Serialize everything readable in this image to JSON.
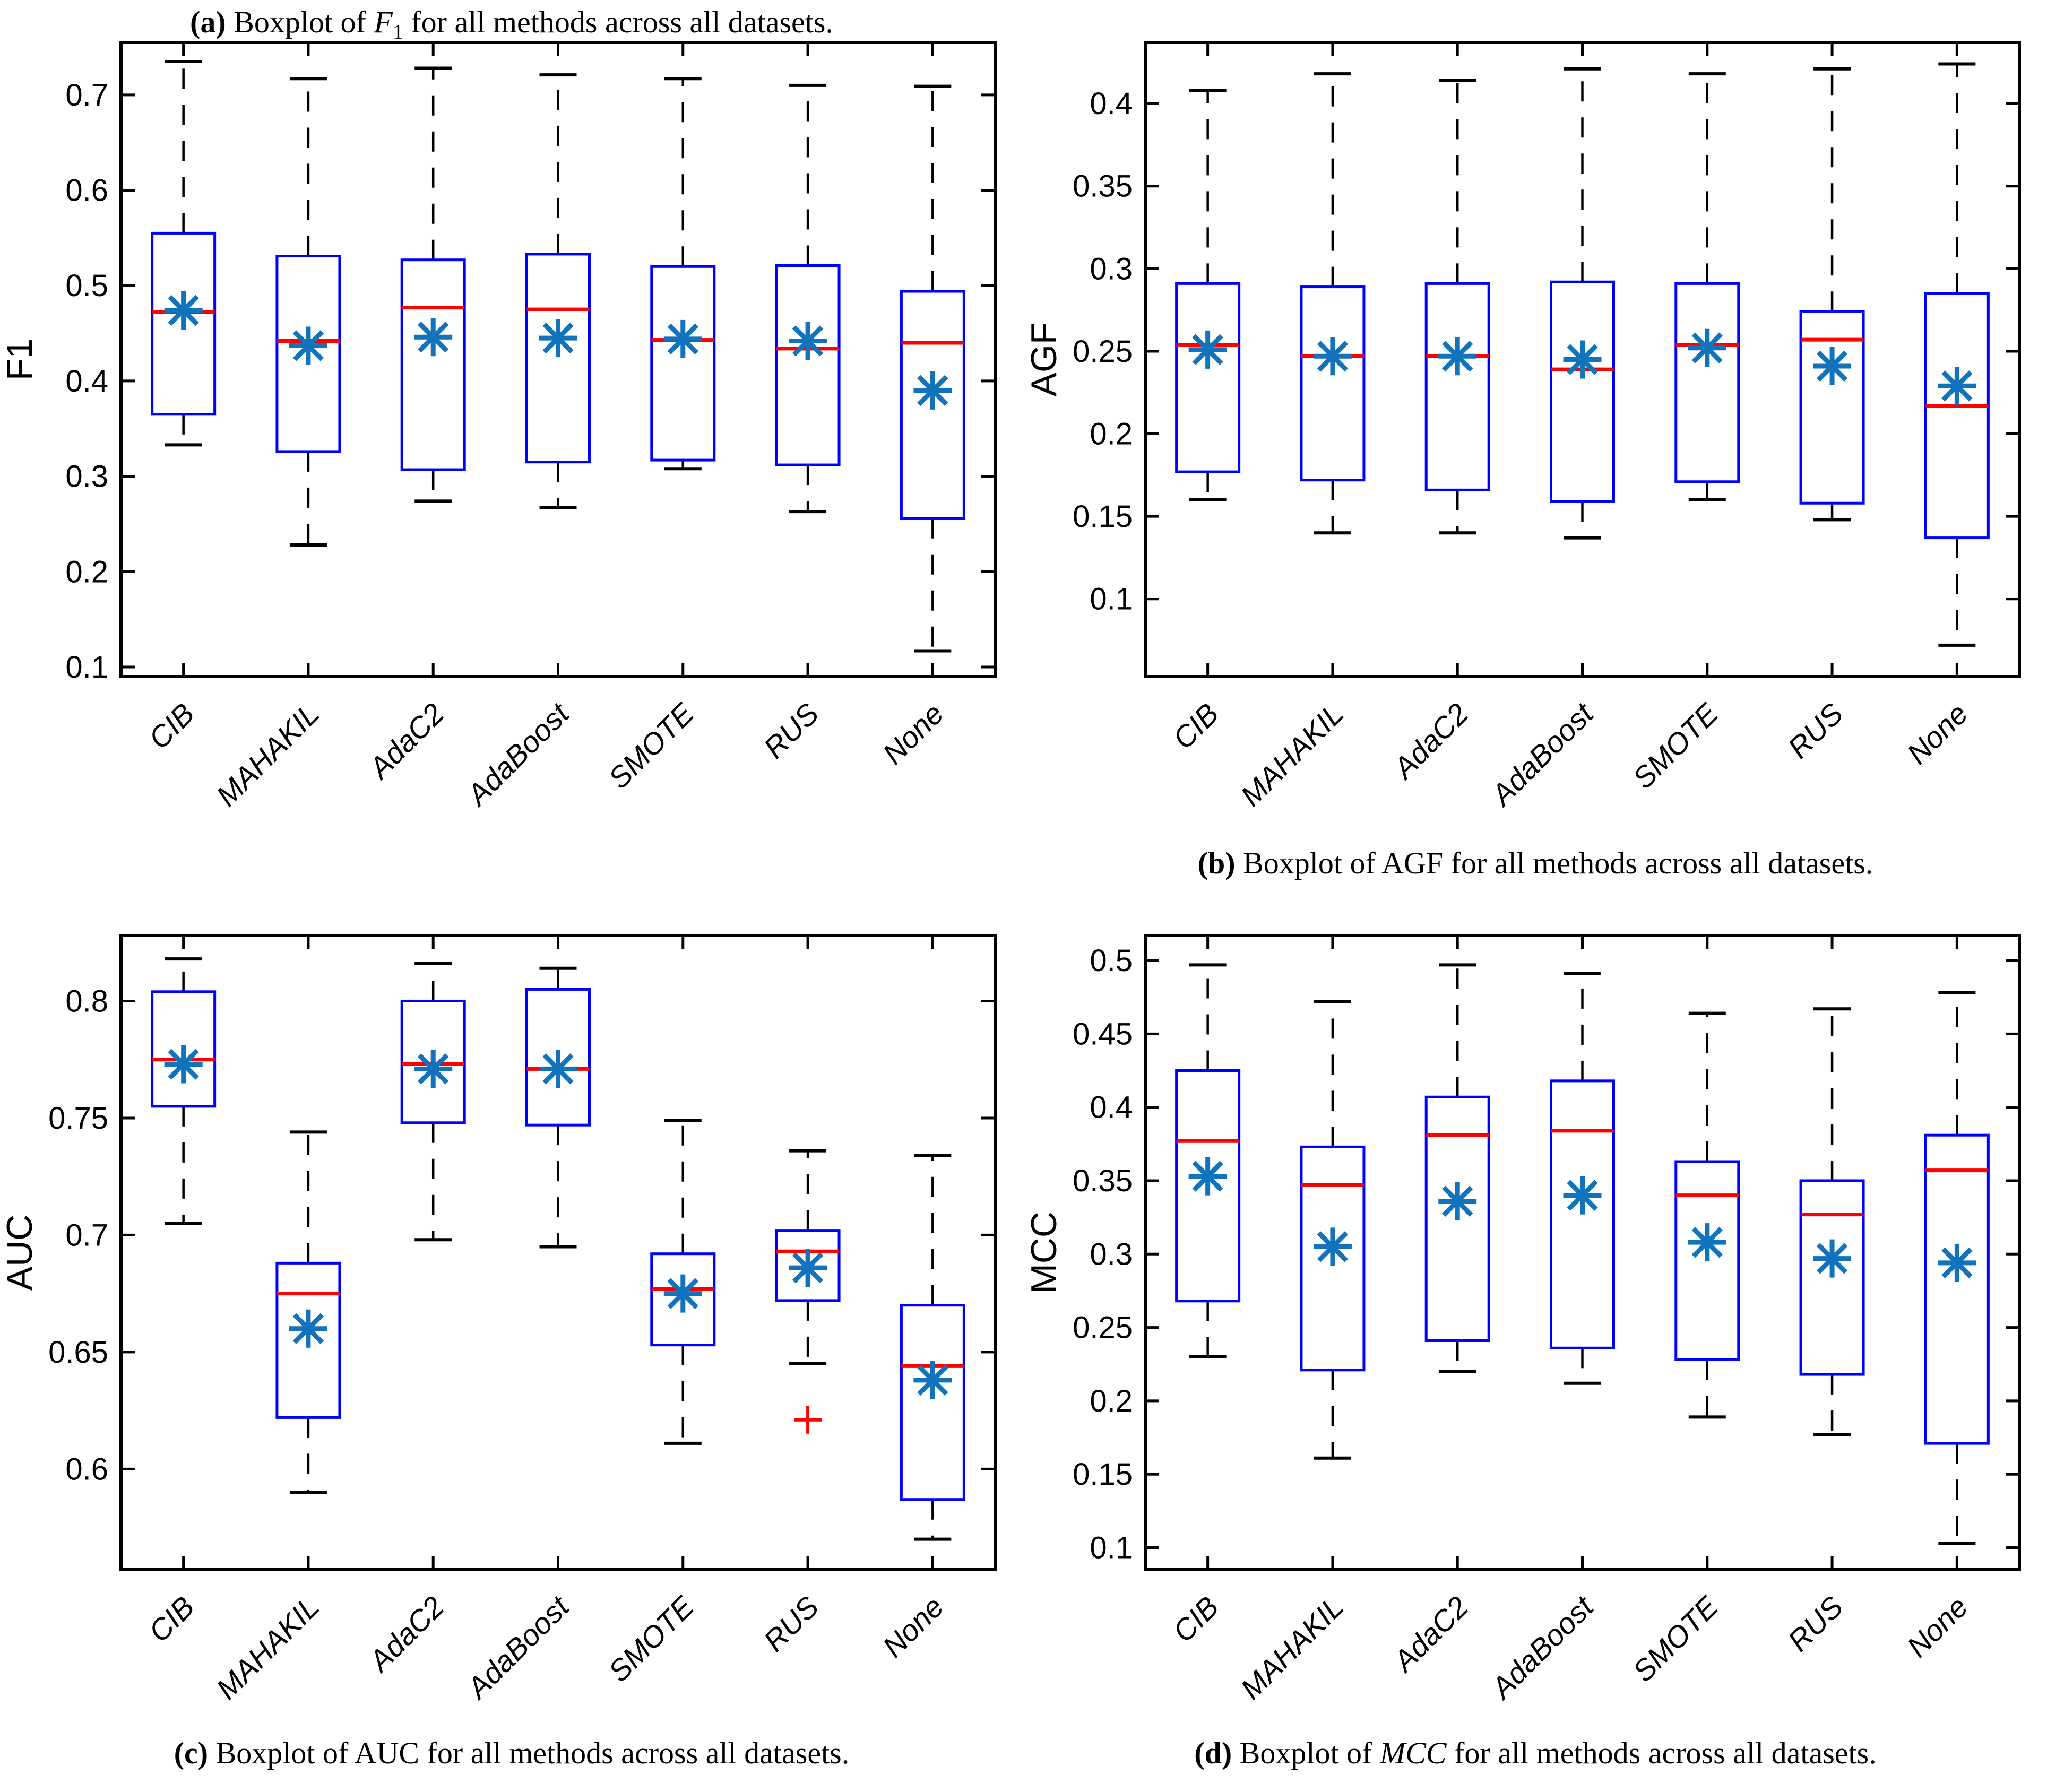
{
  "figure": {
    "background": "#ffffff"
  },
  "colors": {
    "box": "#0000FF",
    "median": "#FF0000",
    "mean_marker": "#1073BC",
    "whisker": "#000000",
    "axis": "#000000",
    "outlier": "#FF0000"
  },
  "icon_legend": {
    "mean_marker": "asterisk-marker",
    "outlier_marker": "plus-marker"
  },
  "chart_data": [
    {
      "type": "boxplot",
      "panel": "a",
      "ylabel": "F1",
      "ylim": [
        0.09,
        0.755
      ],
      "yticks": [
        "0.1",
        "0.2",
        "0.3",
        "0.4",
        "0.5",
        "0.6",
        "0.7"
      ],
      "categories": [
        "CIB",
        "MAHAKIL",
        "AdaC2",
        "AdaBoost",
        "SMOTE",
        "RUS",
        "None"
      ],
      "boxes": [
        {
          "category": "CIB",
          "whisker_low": 0.333,
          "q1": 0.365,
          "median": 0.472,
          "q3": 0.555,
          "whisker_high": 0.735,
          "mean": 0.474,
          "outliers": []
        },
        {
          "category": "MAHAKIL",
          "whisker_low": 0.228,
          "q1": 0.326,
          "median": 0.442,
          "q3": 0.531,
          "whisker_high": 0.717,
          "mean": 0.437,
          "outliers": []
        },
        {
          "category": "AdaC2",
          "whisker_low": 0.274,
          "q1": 0.307,
          "median": 0.477,
          "q3": 0.527,
          "whisker_high": 0.728,
          "mean": 0.446,
          "outliers": []
        },
        {
          "category": "AdaBoost",
          "whisker_low": 0.267,
          "q1": 0.315,
          "median": 0.475,
          "q3": 0.533,
          "whisker_high": 0.721,
          "mean": 0.445,
          "outliers": []
        },
        {
          "category": "SMOTE",
          "whisker_low": 0.308,
          "q1": 0.317,
          "median": 0.443,
          "q3": 0.52,
          "whisker_high": 0.717,
          "mean": 0.444,
          "outliers": []
        },
        {
          "category": "RUS",
          "whisker_low": 0.263,
          "q1": 0.312,
          "median": 0.434,
          "q3": 0.521,
          "whisker_high": 0.71,
          "mean": 0.442,
          "outliers": []
        },
        {
          "category": "None",
          "whisker_low": 0.117,
          "q1": 0.256,
          "median": 0.44,
          "q3": 0.494,
          "whisker_high": 0.709,
          "mean": 0.39,
          "outliers": []
        }
      ],
      "caption": {
        "index": "(a)",
        "pre": " Boxplot of ",
        "metric": "F",
        "metric_sub": "1",
        "metric_italic": true,
        "post": " for all methods across all datasets."
      }
    },
    {
      "type": "boxplot",
      "panel": "b",
      "ylabel": "AGF",
      "ylim": [
        0.053,
        0.437
      ],
      "yticks": [
        "0.1",
        "0.15",
        "0.2",
        "0.25",
        "0.3",
        "0.35",
        "0.4"
      ],
      "categories": [
        "CIB",
        "MAHAKIL",
        "AdaC2",
        "AdaBoost",
        "SMOTE",
        "RUS",
        "None"
      ],
      "boxes": [
        {
          "category": "CIB",
          "whisker_low": 0.16,
          "q1": 0.177,
          "median": 0.254,
          "q3": 0.291,
          "whisker_high": 0.408,
          "mean": 0.251,
          "outliers": []
        },
        {
          "category": "MAHAKIL",
          "whisker_low": 0.14,
          "q1": 0.172,
          "median": 0.247,
          "q3": 0.289,
          "whisker_high": 0.418,
          "mean": 0.247,
          "outliers": []
        },
        {
          "category": "AdaC2",
          "whisker_low": 0.14,
          "q1": 0.166,
          "median": 0.247,
          "q3": 0.291,
          "whisker_high": 0.414,
          "mean": 0.247,
          "outliers": []
        },
        {
          "category": "AdaBoost",
          "whisker_low": 0.137,
          "q1": 0.159,
          "median": 0.239,
          "q3": 0.292,
          "whisker_high": 0.421,
          "mean": 0.245,
          "outliers": []
        },
        {
          "category": "SMOTE",
          "whisker_low": 0.16,
          "q1": 0.171,
          "median": 0.254,
          "q3": 0.291,
          "whisker_high": 0.418,
          "mean": 0.252,
          "outliers": []
        },
        {
          "category": "RUS",
          "whisker_low": 0.148,
          "q1": 0.158,
          "median": 0.257,
          "q3": 0.274,
          "whisker_high": 0.421,
          "mean": 0.241,
          "outliers": []
        },
        {
          "category": "None",
          "whisker_low": 0.072,
          "q1": 0.137,
          "median": 0.217,
          "q3": 0.285,
          "whisker_high": 0.424,
          "mean": 0.229,
          "outliers": []
        }
      ],
      "caption": {
        "index": "(b)",
        "pre": " Boxplot of ",
        "metric": "AGF",
        "metric_sub": "",
        "metric_italic": false,
        "post": " for all methods across all datasets."
      }
    },
    {
      "type": "boxplot",
      "panel": "c",
      "ylabel": "AUC",
      "ylim": [
        0.557,
        0.828
      ],
      "yticks": [
        "0.6",
        "0.65",
        "0.7",
        "0.75",
        "0.8"
      ],
      "categories": [
        "CIB",
        "MAHAKIL",
        "AdaC2",
        "AdaBoost",
        "SMOTE",
        "RUS",
        "None"
      ],
      "boxes": [
        {
          "category": "CIB",
          "whisker_low": 0.705,
          "q1": 0.755,
          "median": 0.775,
          "q3": 0.804,
          "whisker_high": 0.818,
          "mean": 0.773,
          "outliers": []
        },
        {
          "category": "MAHAKIL",
          "whisker_low": 0.59,
          "q1": 0.622,
          "median": 0.675,
          "q3": 0.688,
          "whisker_high": 0.744,
          "mean": 0.66,
          "outliers": []
        },
        {
          "category": "AdaC2",
          "whisker_low": 0.698,
          "q1": 0.748,
          "median": 0.773,
          "q3": 0.8,
          "whisker_high": 0.816,
          "mean": 0.771,
          "outliers": []
        },
        {
          "category": "AdaBoost",
          "whisker_low": 0.695,
          "q1": 0.747,
          "median": 0.771,
          "q3": 0.805,
          "whisker_high": 0.814,
          "mean": 0.771,
          "outliers": []
        },
        {
          "category": "SMOTE",
          "whisker_low": 0.611,
          "q1": 0.653,
          "median": 0.677,
          "q3": 0.692,
          "whisker_high": 0.749,
          "mean": 0.675,
          "outliers": []
        },
        {
          "category": "RUS",
          "whisker_low": 0.645,
          "q1": 0.672,
          "median": 0.693,
          "q3": 0.702,
          "whisker_high": 0.736,
          "mean": 0.686,
          "outliers": [
            0.621
          ]
        },
        {
          "category": "None",
          "whisker_low": 0.57,
          "q1": 0.587,
          "median": 0.644,
          "q3": 0.67,
          "whisker_high": 0.734,
          "mean": 0.638,
          "outliers": []
        }
      ],
      "caption": {
        "index": "(c)",
        "pre": " Boxplot of ",
        "metric": "AUC",
        "metric_sub": "",
        "metric_italic": false,
        "post": " for all methods across all datasets."
      }
    },
    {
      "type": "boxplot",
      "panel": "d",
      "ylabel": "MCC",
      "ylim": [
        0.085,
        0.517
      ],
      "yticks": [
        "0.1",
        "0.15",
        "0.2",
        "0.25",
        "0.3",
        "0.35",
        "0.4",
        "0.45",
        "0.5"
      ],
      "categories": [
        "CIB",
        "MAHAKIL",
        "AdaC2",
        "AdaBoost",
        "SMOTE",
        "RUS",
        "None"
      ],
      "boxes": [
        {
          "category": "CIB",
          "whisker_low": 0.23,
          "q1": 0.268,
          "median": 0.377,
          "q3": 0.425,
          "whisker_high": 0.497,
          "mean": 0.353,
          "outliers": []
        },
        {
          "category": "MAHAKIL",
          "whisker_low": 0.161,
          "q1": 0.221,
          "median": 0.347,
          "q3": 0.373,
          "whisker_high": 0.472,
          "mean": 0.305,
          "outliers": []
        },
        {
          "category": "AdaC2",
          "whisker_low": 0.22,
          "q1": 0.241,
          "median": 0.381,
          "q3": 0.407,
          "whisker_high": 0.497,
          "mean": 0.336,
          "outliers": []
        },
        {
          "category": "AdaBoost",
          "whisker_low": 0.212,
          "q1": 0.236,
          "median": 0.384,
          "q3": 0.418,
          "whisker_high": 0.491,
          "mean": 0.34,
          "outliers": []
        },
        {
          "category": "SMOTE",
          "whisker_low": 0.189,
          "q1": 0.228,
          "median": 0.34,
          "q3": 0.363,
          "whisker_high": 0.464,
          "mean": 0.308,
          "outliers": []
        },
        {
          "category": "RUS",
          "whisker_low": 0.177,
          "q1": 0.218,
          "median": 0.327,
          "q3": 0.35,
          "whisker_high": 0.467,
          "mean": 0.297,
          "outliers": []
        },
        {
          "category": "None",
          "whisker_low": 0.103,
          "q1": 0.171,
          "median": 0.357,
          "q3": 0.381,
          "whisker_high": 0.478,
          "mean": 0.294,
          "outliers": []
        }
      ],
      "caption": {
        "index": "(d)",
        "pre": " Boxplot of ",
        "metric": "MCC",
        "metric_sub": "",
        "metric_italic": true,
        "post": " for all methods across all datasets."
      }
    }
  ]
}
